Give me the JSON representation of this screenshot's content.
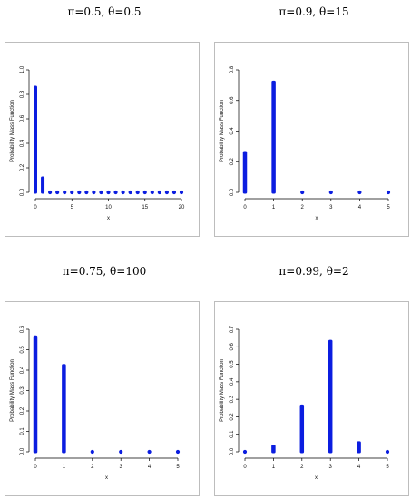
{
  "colors": {
    "bar": "#0b1de0",
    "axis": "#000000",
    "frame": "#bdbdbd"
  },
  "chart_data": [
    {
      "type": "bar",
      "title": "π=0.5, θ=0.5",
      "xlabel": "x",
      "ylabel": "Probability Mass Function",
      "x": [
        0,
        1,
        2,
        3,
        4,
        5,
        6,
        7,
        8,
        9,
        10,
        11,
        12,
        13,
        14,
        15,
        16,
        17,
        18,
        19,
        20
      ],
      "values": [
        0.87,
        0.13,
        0.003,
        0.001,
        0,
        0,
        0,
        0,
        0,
        0,
        0,
        0,
        0,
        0,
        0,
        0,
        0,
        0,
        0,
        0,
        0
      ],
      "xlim": [
        0,
        20
      ],
      "ylim": [
        0,
        1.0
      ],
      "xticks": [
        0,
        5,
        10,
        15,
        20
      ],
      "yticks": [
        0.0,
        0.2,
        0.4,
        0.6,
        0.8,
        1.0
      ],
      "ytick_labels": [
        "0.0",
        "0.2",
        "0.4",
        "0.6",
        "0.8",
        "1.0"
      ]
    },
    {
      "type": "bar",
      "title": "π=0.9, θ=15",
      "xlabel": "x",
      "ylabel": "Probability Mass Function",
      "x": [
        0,
        1,
        2,
        3,
        4,
        5
      ],
      "values": [
        0.27,
        0.73,
        0.002,
        0.0005,
        0,
        0
      ],
      "xlim": [
        0,
        5
      ],
      "ylim": [
        0,
        0.8
      ],
      "xticks": [
        0,
        1,
        2,
        3,
        4,
        5
      ],
      "yticks": [
        0.0,
        0.2,
        0.4,
        0.6,
        0.8
      ],
      "ytick_labels": [
        "0.0",
        "0.2",
        "0.4",
        "0.6",
        "0.8"
      ]
    },
    {
      "type": "bar",
      "title": "π=0.75, θ=100",
      "xlabel": "x",
      "ylabel": "Probability Mass Function",
      "x": [
        0,
        1,
        2,
        3,
        4,
        5
      ],
      "values": [
        0.57,
        0.43,
        0.002,
        0.0005,
        0,
        0
      ],
      "xlim": [
        0,
        5
      ],
      "ylim": [
        0,
        0.6
      ],
      "xticks": [
        0,
        1,
        2,
        3,
        4,
        5
      ],
      "yticks": [
        0.0,
        0.1,
        0.2,
        0.3,
        0.4,
        0.5,
        0.6
      ],
      "ytick_labels": [
        "0.0",
        "0.1",
        "0.2",
        "0.3",
        "0.4",
        "0.5",
        "0.6"
      ]
    },
    {
      "type": "bar",
      "title": "π=0.99, θ=2",
      "xlabel": "x",
      "ylabel": "Probability Mass Function",
      "x": [
        0,
        1,
        2,
        3,
        4,
        5
      ],
      "values": [
        0.002,
        0.04,
        0.27,
        0.64,
        0.06,
        0.003
      ],
      "xlim": [
        0,
        5
      ],
      "ylim": [
        0,
        0.7
      ],
      "xticks": [
        0,
        1,
        2,
        3,
        4,
        5
      ],
      "yticks": [
        0.0,
        0.1,
        0.2,
        0.3,
        0.4,
        0.5,
        0.6,
        0.7
      ],
      "ytick_labels": [
        "0.0",
        "0.1",
        "0.2",
        "0.3",
        "0.4",
        "0.5",
        "0.6",
        "0.7"
      ]
    }
  ]
}
